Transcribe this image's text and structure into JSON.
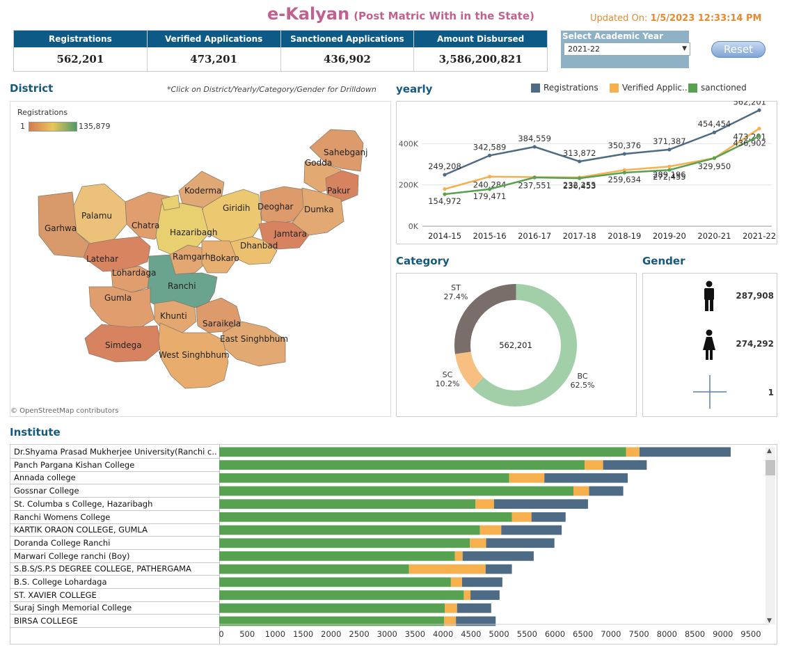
{
  "header": {
    "title": "e-Kalyan",
    "subtitle": "(Post Matric With in the State)",
    "updated_label": "Updated On:",
    "updated_value": "1/5/2023 12:33:14 PM"
  },
  "kpis": [
    {
      "label": "Registrations",
      "value": "562,201"
    },
    {
      "label": "Verified Applications",
      "value": "473,201"
    },
    {
      "label": "Sanctioned Applications",
      "value": "436,902"
    },
    {
      "label": "Amount Disbursed",
      "value": "3,586,200,821"
    }
  ],
  "year_filter": {
    "label": "Select Academic Year",
    "value": "2021-22",
    "arrow_icon": "chevron-down-icon"
  },
  "reset_label": "Reset",
  "sections": {
    "district": "District",
    "drill_note": "*Click on District/Yearly/Category/Gender for Drilldown",
    "yearly": "yearly",
    "category": "Category",
    "gender": "Gender",
    "institute": "Institute"
  },
  "map": {
    "legend_title": "Registrations",
    "legend_min": "1",
    "legend_max": "135,879",
    "attribution": "© OpenStreetMap contributors",
    "districts": [
      "Sahebganj",
      "Godda",
      "Pakur",
      "Koderma",
      "Giridih",
      "Deoghar",
      "Dumka",
      "Palamu",
      "Chatra",
      "Garhwa",
      "Hazaribagh",
      "Jamtara",
      "Dhanbad",
      "Ramgarh",
      "Bokaro",
      "Latehar",
      "Lohardaga",
      "Ranchi",
      "Gumla",
      "Khunti",
      "Saraikela",
      "East Singhbhum",
      "Simdega",
      "West Singhbhum"
    ]
  },
  "chart_data": [
    {
      "type": "line",
      "title": "yearly",
      "x": [
        "2014-15",
        "2015-16",
        "2016-17",
        "2017-18",
        "2018-19",
        "2019-20",
        "2020-21",
        "2021-22"
      ],
      "y_ticks": [
        "0K",
        "200K",
        "400K"
      ],
      "ylim": [
        0,
        580000
      ],
      "legend_placement": "top-right",
      "series": [
        {
          "name": "Registrations",
          "color": "#4e6b86",
          "values": [
            249208,
            342589,
            384559,
            313872,
            350376,
            371387,
            454454,
            562201
          ],
          "labels": [
            "249,208",
            "342,589",
            "384,559",
            "313,872",
            "350,376",
            "371,387",
            "454,454",
            "562,201"
          ]
        },
        {
          "name": "Verified Applic..",
          "color": "#f6b04e",
          "values": [
            180000,
            240284,
            237551,
            236453,
            272000,
            289196,
            329950,
            473201
          ],
          "labels": [
            "",
            "240,284",
            "237,551",
            "236,453",
            "",
            "289,196",
            "329,950",
            "473,201"
          ]
        },
        {
          "name": "sanctioned",
          "color": "#57a251",
          "values": [
            154972,
            179471,
            236000,
            232255,
            259634,
            272455,
            329950,
            436902
          ],
          "labels": [
            "154,972",
            "179,471",
            "",
            "232,255",
            "259,634",
            "272,455",
            "",
            "436,902"
          ]
        }
      ]
    },
    {
      "type": "pie",
      "title": "Category",
      "center_label": "562,201",
      "slices": [
        {
          "name": "BC",
          "percent": 62.5,
          "label": "62.5%",
          "color": "#a3cfa8"
        },
        {
          "name": "SC",
          "percent": 10.2,
          "label": "10.2%",
          "color": "#f7bf80"
        },
        {
          "name": "ST",
          "percent": 27.4,
          "label": "27.4%",
          "color": "#7a6e6a"
        }
      ]
    },
    {
      "type": "table",
      "title": "Gender",
      "rows": [
        {
          "icon": "male-icon",
          "value": "287,908"
        },
        {
          "icon": "female-icon",
          "value": "274,292"
        },
        {
          "icon": "crosshair-icon",
          "value": "1"
        }
      ]
    },
    {
      "type": "bar",
      "title": "Institute",
      "orientation": "horizontal",
      "stacked": true,
      "x_ticks": [
        0,
        500,
        1000,
        1500,
        2000,
        2500,
        3000,
        3500,
        4000,
        4500,
        5000,
        5500,
        6000,
        6500,
        7000,
        7500,
        8000,
        8500,
        9000,
        9500
      ],
      "xlim": [
        0,
        9700
      ],
      "categories": [
        "Dr.Shyama Prasad Mukherjee University(Ranchi c..",
        "Panch Pargana Kishan College",
        "Annada college",
        "Gossnar College",
        "St. Columba s College, Hazaribagh",
        "Ranchi Womens College",
        "KARTIK ORAON COLLEGE, GUMLA",
        "Doranda College Ranchi",
        "Marwari College ranchi (Boy)",
        "S.B.S/S.P.S DEGREE COLLEGE, PATHERGAMA",
        "B.S. College Lohardaga",
        "ST. XAVIER COLLEGE",
        "Suraj Singh Memorial College",
        "BIRSA COLLEGE"
      ],
      "series": [
        {
          "name": "sanctioned",
          "color": "#57a251",
          "values": [
            7270,
            6530,
            5180,
            6330,
            4580,
            5230,
            4660,
            4480,
            4210,
            3390,
            4140,
            4370,
            4030,
            4020
          ]
        },
        {
          "name": "Verified",
          "color": "#f6b04e",
          "values": [
            240,
            330,
            630,
            280,
            330,
            350,
            380,
            290,
            140,
            1370,
            200,
            120,
            220,
            210
          ]
        },
        {
          "name": "Registrations",
          "color": "#4e6b86",
          "values": [
            1630,
            780,
            1490,
            610,
            1680,
            610,
            1080,
            1220,
            1270,
            470,
            720,
            520,
            610,
            710
          ]
        }
      ]
    }
  ]
}
